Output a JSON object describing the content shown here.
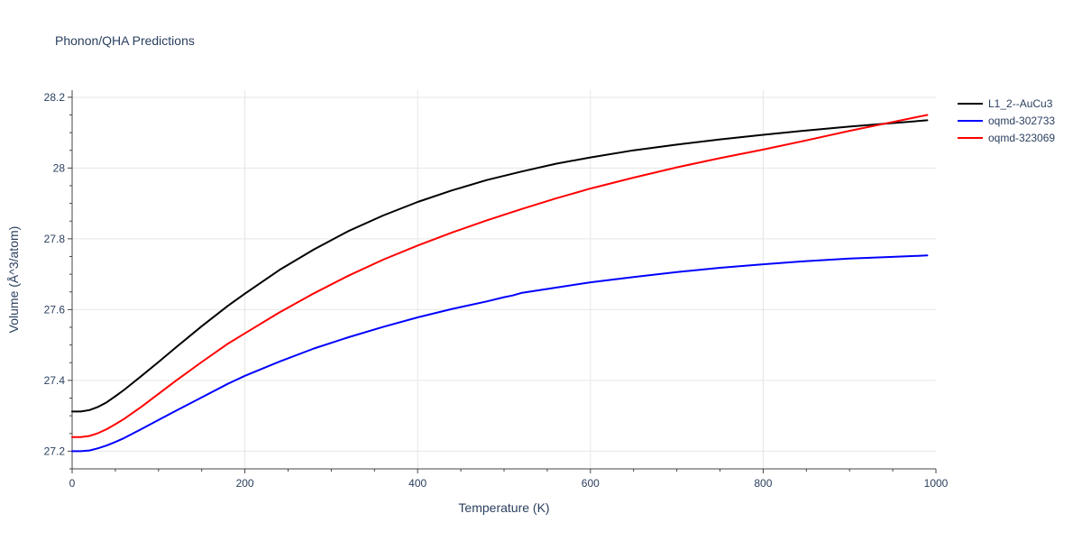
{
  "chart_data": {
    "type": "line",
    "title": "Phonon/QHA Predictions",
    "xlabel": "Temperature (K)",
    "ylabel": "Volume (Å^3/atom)",
    "xlim": [
      0,
      1000
    ],
    "ylim": [
      27.15,
      28.22
    ],
    "x_ticks": [
      0,
      200,
      400,
      600,
      800,
      1000
    ],
    "y_ticks": [
      27.2,
      27.4,
      27.6,
      27.8,
      28.0,
      28.2
    ],
    "x_tick_labels": [
      "0",
      "200",
      "400",
      "600",
      "800",
      "1000"
    ],
    "y_tick_labels": [
      "27.2",
      "27.4",
      "27.6",
      "27.8",
      "28",
      "28.2"
    ],
    "grid": true,
    "legend_position": "top-right",
    "series": [
      {
        "name": "L1_2--AuCu3",
        "color": "#000000",
        "x": [
          0,
          10,
          20,
          30,
          40,
          50,
          60,
          80,
          100,
          120,
          150,
          180,
          200,
          240,
          280,
          320,
          360,
          400,
          440,
          480,
          520,
          560,
          600,
          650,
          700,
          750,
          800,
          850,
          900,
          950,
          990
        ],
        "y": [
          27.312,
          27.312,
          27.316,
          27.325,
          27.338,
          27.355,
          27.373,
          27.412,
          27.452,
          27.493,
          27.553,
          27.61,
          27.645,
          27.712,
          27.77,
          27.822,
          27.866,
          27.904,
          27.937,
          27.966,
          27.99,
          28.012,
          28.03,
          28.05,
          28.066,
          28.081,
          28.094,
          28.106,
          28.117,
          28.127,
          28.135
        ]
      },
      {
        "name": "oqmd-302733",
        "color": "#0000ff",
        "x": [
          0,
          10,
          20,
          30,
          40,
          50,
          60,
          80,
          100,
          120,
          150,
          180,
          200,
          240,
          280,
          320,
          360,
          400,
          440,
          480,
          500,
          510,
          520,
          560,
          600,
          650,
          700,
          750,
          800,
          850,
          900,
          950,
          990
        ],
        "y": [
          27.2,
          27.2,
          27.202,
          27.208,
          27.216,
          27.226,
          27.237,
          27.262,
          27.288,
          27.314,
          27.352,
          27.39,
          27.413,
          27.453,
          27.49,
          27.522,
          27.551,
          27.578,
          27.602,
          27.623,
          27.635,
          27.64,
          27.647,
          27.662,
          27.677,
          27.692,
          27.706,
          27.718,
          27.728,
          27.737,
          27.744,
          27.749,
          27.753
        ]
      },
      {
        "name": "oqmd-323069",
        "color": "#ff0000",
        "x": [
          0,
          10,
          20,
          30,
          40,
          50,
          60,
          80,
          100,
          120,
          150,
          180,
          200,
          240,
          280,
          320,
          360,
          400,
          440,
          480,
          520,
          560,
          600,
          650,
          700,
          750,
          800,
          850,
          900,
          950,
          990
        ],
        "y": [
          27.24,
          27.24,
          27.243,
          27.251,
          27.262,
          27.276,
          27.291,
          27.325,
          27.362,
          27.399,
          27.452,
          27.503,
          27.533,
          27.592,
          27.646,
          27.696,
          27.741,
          27.781,
          27.818,
          27.852,
          27.884,
          27.914,
          27.942,
          27.973,
          28.002,
          28.028,
          28.052,
          28.078,
          28.105,
          28.13,
          28.15
        ]
      }
    ]
  }
}
